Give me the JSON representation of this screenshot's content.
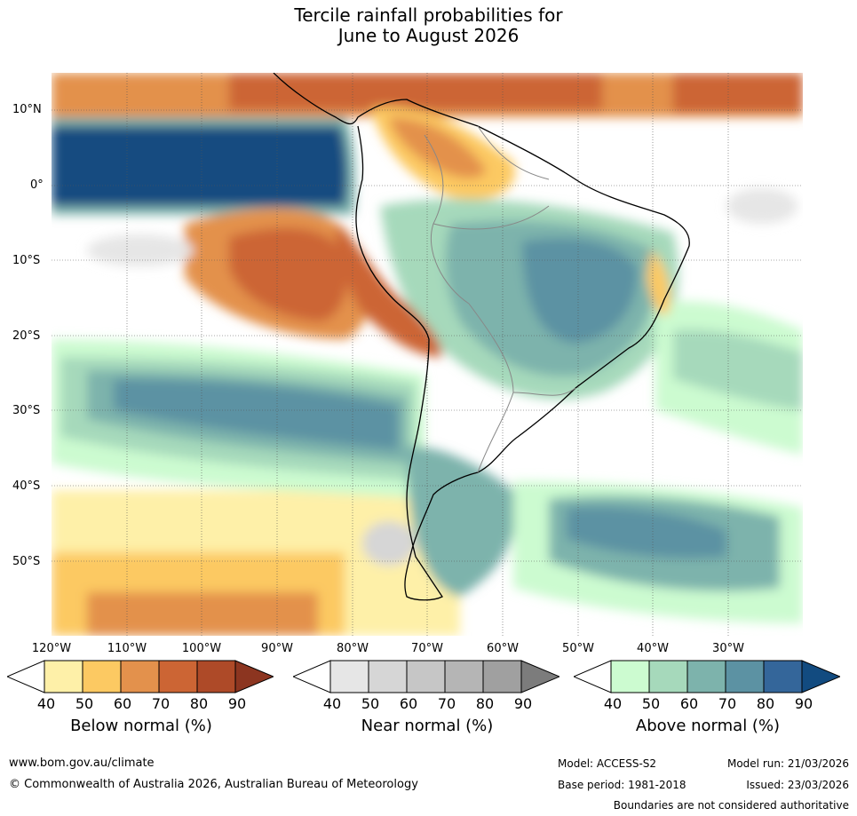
{
  "title": {
    "line1": "Tercile rainfall probabilities for",
    "line2": "June to August 2026"
  },
  "lat_labels": [
    "10°N",
    "0°",
    "10°S",
    "20°S",
    "30°S",
    "40°S",
    "50°S"
  ],
  "lon_labels": [
    "120°W",
    "110°W",
    "100°W",
    "90°W",
    "80°W",
    "70°W",
    "60°W",
    "50°W",
    "40°W",
    "30°W"
  ],
  "colorbars": [
    {
      "title": "Below normal (%)",
      "ticks": [
        "40",
        "50",
        "60",
        "70",
        "80",
        "90"
      ],
      "colors": [
        "#fef0a8",
        "#fcc962",
        "#e3914c",
        "#cc6534",
        "#ae4a28",
        "#8c3520"
      ]
    },
    {
      "title": "Near normal (%)",
      "ticks": [
        "40",
        "50",
        "60",
        "70",
        "80",
        "90"
      ],
      "colors": [
        "#e6e6e6",
        "#d6d6d6",
        "#c6c6c6",
        "#b5b5b5",
        "#a0a0a0",
        "#7c7c7c"
      ]
    },
    {
      "title": "Above normal (%)",
      "ticks": [
        "40",
        "50",
        "60",
        "70",
        "80",
        "90"
      ],
      "colors": [
        "#ccfbd0",
        "#a6d9bb",
        "#7db3ac",
        "#5c92a3",
        "#34669a",
        "#124b80"
      ]
    }
  ],
  "footer": {
    "url": "www.bom.gov.au/climate",
    "copyright": "© Commonwealth of Australia 2026, Australian Bureau of Meteorology",
    "model": "Model: ACCESS-S2",
    "model_run": "Model run: 21/03/2026",
    "base_period": "Base period: 1981-2018",
    "issued": "Issued: 23/03/2026",
    "disclaimer": "Boundaries are not considered authoritative"
  }
}
